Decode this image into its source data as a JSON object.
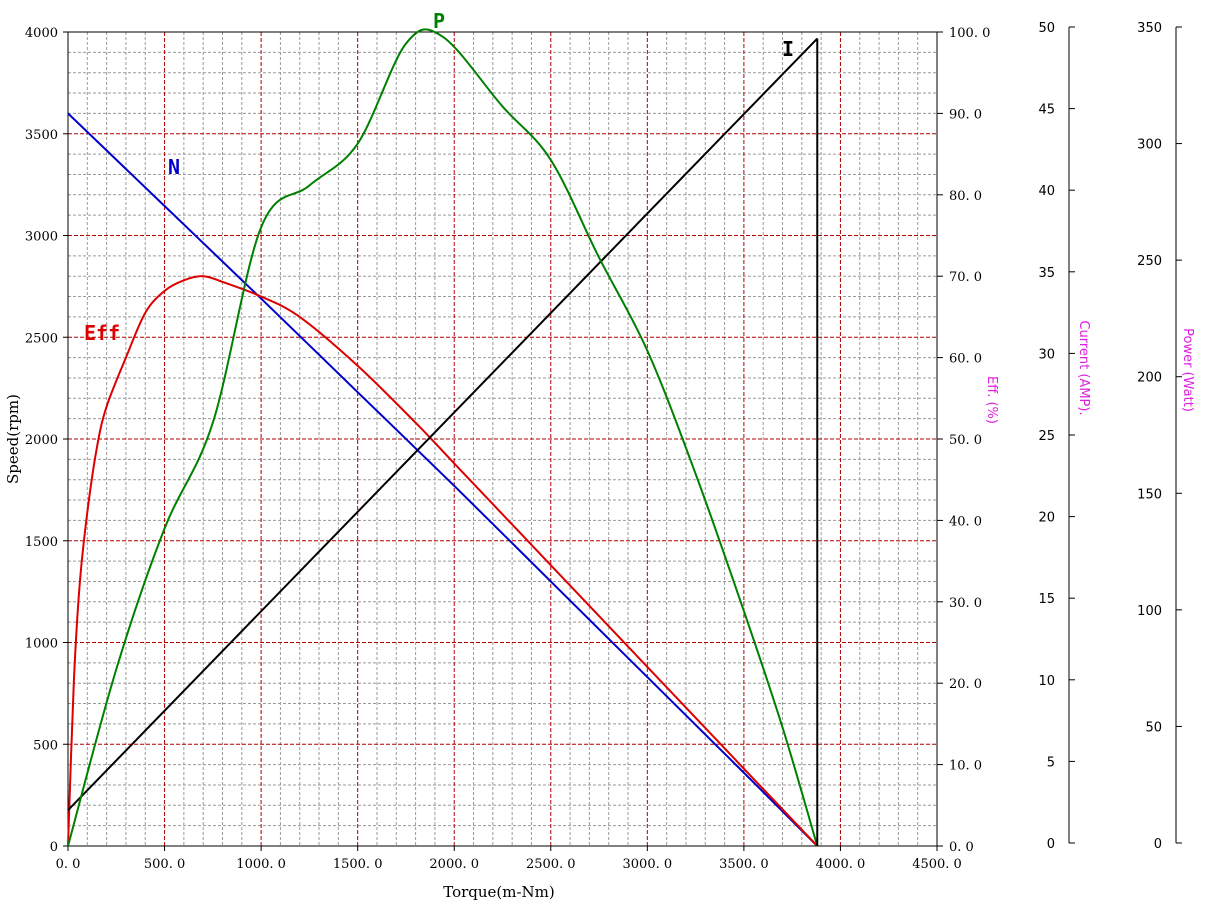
{
  "chart_data": {
    "type": "line",
    "xlabel": "Torque(m-Nm)",
    "ylabel": "Speed(rpm)",
    "xlim": [
      0,
      4500
    ],
    "x_ticks": [
      "0. 0",
      "500. 0",
      "1000. 0",
      "1500. 0",
      "2000. 0",
      "2500. 0",
      "3000. 0",
      "3500. 0",
      "4000. 0",
      "4500. 0"
    ],
    "ylim": [
      0,
      4000
    ],
    "y_ticks": [
      "0",
      "500",
      "1000",
      "1500",
      "2000",
      "2500",
      "3000",
      "3500",
      "4000"
    ],
    "grid": true,
    "secondary_axes": [
      {
        "label": "Eff. (%)",
        "range": [
          0,
          100
        ],
        "ticks": [
          "0. 0",
          "10. 0",
          "20. 0",
          "30. 0",
          "40. 0",
          "50. 0",
          "60. 0",
          "70. 0",
          "80. 0",
          "90. 0",
          "100. 0"
        ]
      },
      {
        "label": "Current (AMP).",
        "range": [
          0,
          50
        ],
        "ticks": [
          "0",
          "5",
          "10",
          "15",
          "20",
          "25",
          "30",
          "35",
          "40",
          "45",
          "50"
        ]
      },
      {
        "label": "Power (Watt)",
        "range": [
          0,
          350
        ],
        "ticks": [
          "0",
          "50",
          "100",
          "150",
          "200",
          "250",
          "300",
          "350"
        ]
      }
    ],
    "series": [
      {
        "name": "N",
        "axis": "speed",
        "color": "#0000cc",
        "x": [
          0,
          500,
          1000,
          1500,
          2000,
          2500,
          3000,
          3500,
          3880
        ],
        "values": [
          3600,
          3145,
          2690,
          2230,
          1770,
          1300,
          830,
          360,
          0
        ]
      },
      {
        "name": "Eff",
        "axis": "eff",
        "color": "#dd0000",
        "x": [
          0,
          30,
          60,
          100,
          150,
          200,
          300,
          400,
          500,
          600,
          700,
          800,
          1000,
          1200,
          1500,
          1800,
          2000,
          2300,
          2500,
          2800,
          3000,
          3300,
          3500,
          3700,
          3880
        ],
        "values": [
          0,
          20,
          32,
          41,
          49,
          54,
          60,
          65.5,
          68.2,
          69.5,
          70,
          69.3,
          67.5,
          65,
          59,
          52,
          47,
          39.5,
          34.5,
          27,
          22,
          14.5,
          9.5,
          4.5,
          0
        ]
      },
      {
        "name": "I",
        "axis": "current",
        "color": "#000000",
        "x": [
          0,
          3880
        ],
        "values": [
          2.2,
          49.6
        ]
      },
      {
        "name": "P",
        "axis": "power",
        "color": "#008000",
        "x": [
          0,
          250,
          500,
          750,
          1000,
          1250,
          1500,
          1750,
          1940,
          2250,
          2500,
          2750,
          3000,
          3250,
          3500,
          3700,
          3880
        ],
        "values": [
          0,
          76,
          136.5,
          182,
          266,
          284,
          302,
          345,
          348,
          318,
          295,
          253,
          213,
          160,
          101,
          51,
          0
        ]
      }
    ]
  }
}
